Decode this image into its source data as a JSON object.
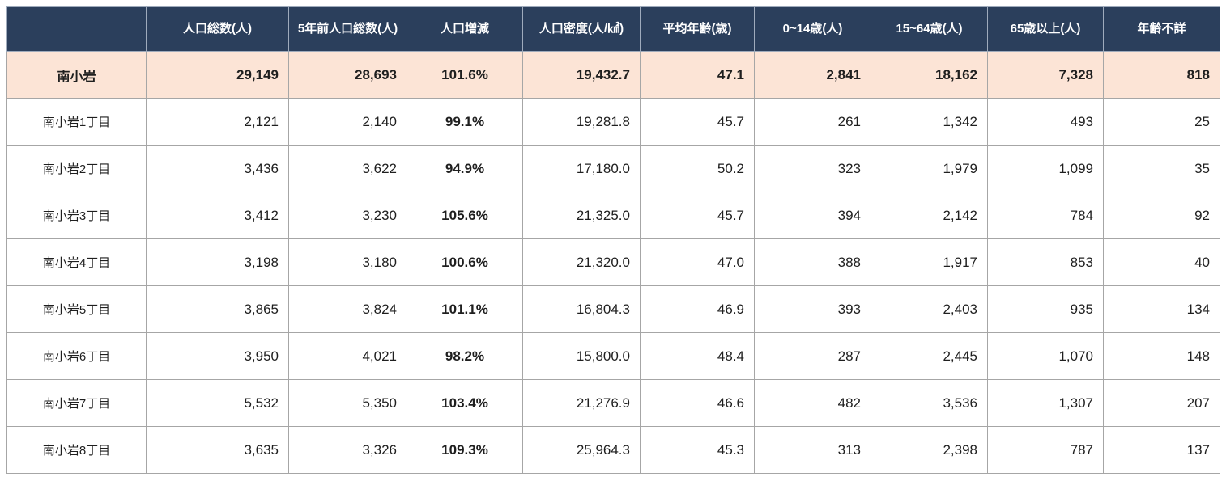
{
  "colors": {
    "header_bg": "#2b3f5c",
    "header_text": "#ffffff",
    "header_border": "#9fabbc",
    "summary_bg": "#fce4d6",
    "body_bg": "#ffffff",
    "grid_border": "#a6a6a6",
    "text": "#1f1f1f"
  },
  "table": {
    "corner_label": "",
    "columns": [
      "人口総数(人)",
      "5年前人口総数(人)",
      "人口増減",
      "人口密度(人/㎢)",
      "平均年齢(歳)",
      "0~14歳(人)",
      "15~64歳(人)",
      "65歳以上(人)",
      "年齢不詳"
    ],
    "rows": [
      {
        "summary": true,
        "name": "南小岩",
        "values": [
          "29,149",
          "28,693",
          "101.6%",
          "19,432.7",
          "47.1",
          "2,841",
          "18,162",
          "7,328",
          "818"
        ]
      },
      {
        "summary": false,
        "name": "南小岩1丁目",
        "values": [
          "2,121",
          "2,140",
          "99.1%",
          "19,281.8",
          "45.7",
          "261",
          "1,342",
          "493",
          "25"
        ]
      },
      {
        "summary": false,
        "name": "南小岩2丁目",
        "values": [
          "3,436",
          "3,622",
          "94.9%",
          "17,180.0",
          "50.2",
          "323",
          "1,979",
          "1,099",
          "35"
        ]
      },
      {
        "summary": false,
        "name": "南小岩3丁目",
        "values": [
          "3,412",
          "3,230",
          "105.6%",
          "21,325.0",
          "45.7",
          "394",
          "2,142",
          "784",
          "92"
        ]
      },
      {
        "summary": false,
        "name": "南小岩4丁目",
        "values": [
          "3,198",
          "3,180",
          "100.6%",
          "21,320.0",
          "47.0",
          "388",
          "1,917",
          "853",
          "40"
        ]
      },
      {
        "summary": false,
        "name": "南小岩5丁目",
        "values": [
          "3,865",
          "3,824",
          "101.1%",
          "16,804.3",
          "46.9",
          "393",
          "2,403",
          "935",
          "134"
        ]
      },
      {
        "summary": false,
        "name": "南小岩6丁目",
        "values": [
          "3,950",
          "4,021",
          "98.2%",
          "15,800.0",
          "48.4",
          "287",
          "2,445",
          "1,070",
          "148"
        ]
      },
      {
        "summary": false,
        "name": "南小岩7丁目",
        "values": [
          "5,532",
          "5,350",
          "103.4%",
          "21,276.9",
          "46.6",
          "482",
          "3,536",
          "1,307",
          "207"
        ]
      },
      {
        "summary": false,
        "name": "南小岩8丁目",
        "values": [
          "3,635",
          "3,326",
          "109.3%",
          "25,964.3",
          "45.3",
          "313",
          "2,398",
          "787",
          "137"
        ]
      }
    ]
  },
  "chart_data": {
    "type": "table",
    "title": "",
    "columns": [
      "",
      "人口総数(人)",
      "5年前人口総数(人)",
      "人口増減",
      "人口密度(人/㎢)",
      "平均年齢(歳)",
      "0~14歳(人)",
      "15~64歳(人)",
      "65歳以上(人)",
      "年齢不詳"
    ],
    "rows": [
      [
        "南小岩",
        29149,
        28693,
        "101.6%",
        19432.7,
        47.1,
        2841,
        18162,
        7328,
        818
      ],
      [
        "南小岩1丁目",
        2121,
        2140,
        "99.1%",
        19281.8,
        45.7,
        261,
        1342,
        493,
        25
      ],
      [
        "南小岩2丁目",
        3436,
        3622,
        "94.9%",
        17180.0,
        50.2,
        323,
        1979,
        1099,
        35
      ],
      [
        "南小岩3丁目",
        3412,
        3230,
        "105.6%",
        21325.0,
        45.7,
        394,
        2142,
        784,
        92
      ],
      [
        "南小岩4丁目",
        3198,
        3180,
        "100.6%",
        21320.0,
        47.0,
        388,
        1917,
        853,
        40
      ],
      [
        "南小岩5丁目",
        3865,
        3824,
        "101.1%",
        16804.3,
        46.9,
        393,
        2403,
        935,
        134
      ],
      [
        "南小岩6丁目",
        3950,
        4021,
        "98.2%",
        15800.0,
        48.4,
        287,
        2445,
        1070,
        148
      ],
      [
        "南小岩7丁目",
        5532,
        5350,
        "103.4%",
        21276.9,
        46.6,
        482,
        3536,
        1307,
        207
      ],
      [
        "南小岩8丁目",
        3635,
        3326,
        "109.3%",
        25964.3,
        45.3,
        313,
        2398,
        787,
        137
      ]
    ]
  }
}
